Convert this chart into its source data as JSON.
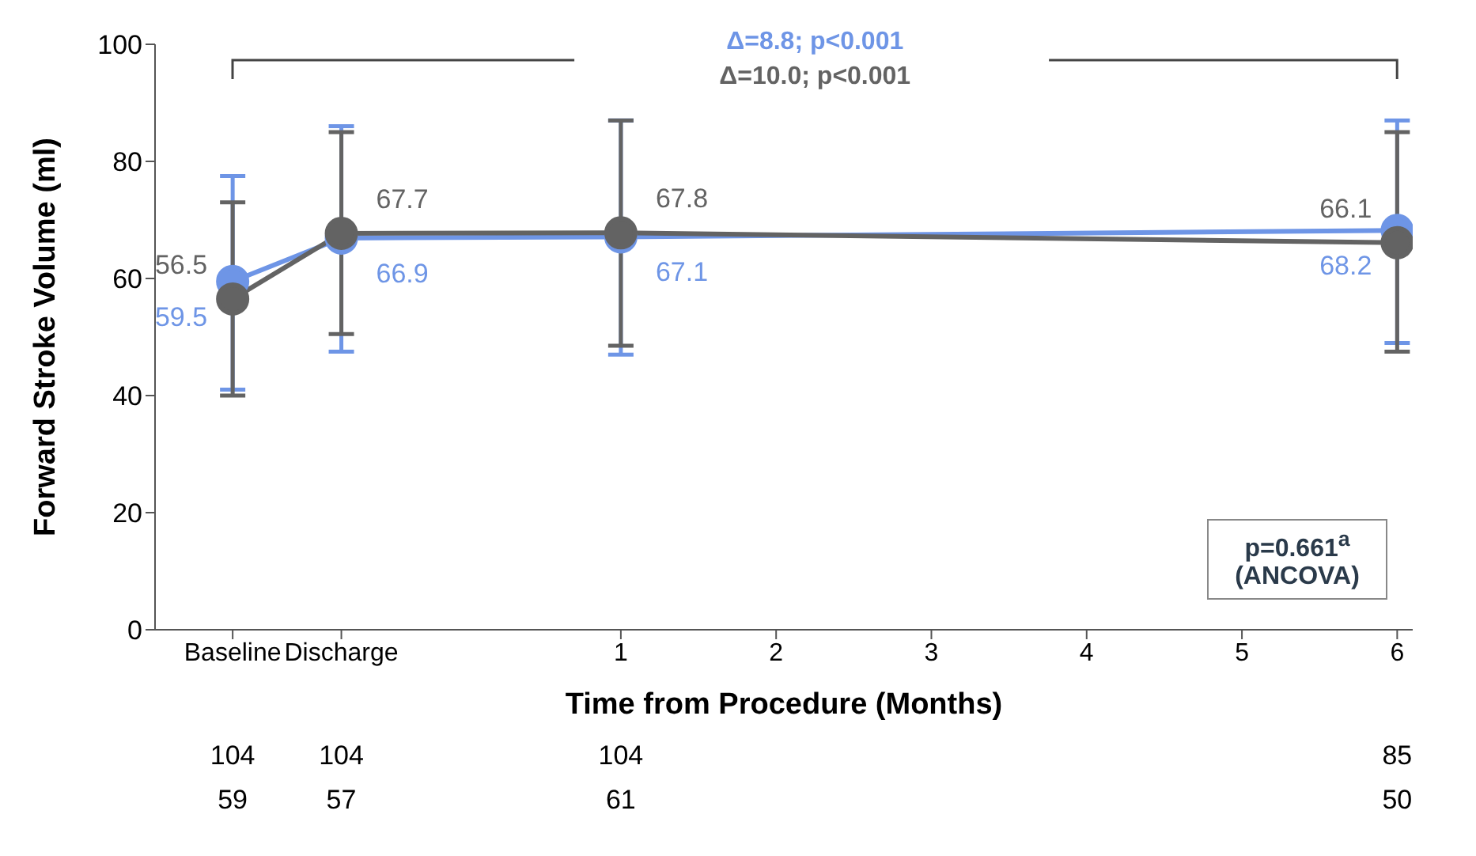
{
  "chart_data": {
    "type": "line",
    "xlabel": "Time from Procedure (Months)",
    "ylabel": "Forward Stroke Volume (ml)",
    "x": [
      -1.5,
      -0.8,
      1,
      6
    ],
    "xlim": [
      -2,
      6.1
    ],
    "xticks": [
      {
        "value": -1.5,
        "label": "Baseline"
      },
      {
        "value": -0.8,
        "label": "Discharge"
      },
      1,
      2,
      3,
      4,
      5,
      6
    ],
    "ylim": [
      0,
      100
    ],
    "yticks": [
      0,
      20,
      40,
      60,
      80,
      100
    ],
    "series": [
      {
        "color": "#6e95e6",
        "values": [
          59.5,
          66.9,
          67.1,
          68.2
        ],
        "errors": [
          [
            41,
            77.5
          ],
          [
            47.5,
            86
          ],
          [
            47,
            87
          ],
          [
            49,
            87
          ]
        ]
      },
      {
        "color": "#636363",
        "values": [
          56.5,
          67.7,
          67.8,
          66.1
        ],
        "errors": [
          [
            40,
            73
          ],
          [
            50.5,
            85
          ],
          [
            48.5,
            87
          ],
          [
            47.5,
            85
          ]
        ]
      }
    ],
    "data_labels": true,
    "marker": "circle",
    "annotations": [
      "Δ=8.8; p<0.001",
      "Δ=10.0; p<0.001",
      "p=0.661$^{a}$ (ANCOVA)",
      "104",
      "104",
      "104",
      "85",
      "59",
      "57",
      "61",
      "50"
    ]
  }
}
